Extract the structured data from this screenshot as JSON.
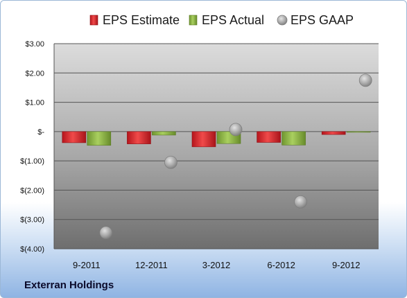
{
  "company": "Exterran Holdings",
  "colors": {
    "estimate": "#d9242b",
    "actual": "#8ab043",
    "gaap": "#a9a9a9"
  },
  "chart_data": {
    "type": "bar",
    "categories": [
      "9-2011",
      "12-2011",
      "3-2012",
      "6-2012",
      "9-2012"
    ],
    "series": [
      {
        "name": "EPS Estimate",
        "kind": "bar",
        "values": [
          -0.38,
          -0.42,
          -0.52,
          -0.37,
          -0.1
        ]
      },
      {
        "name": "EPS Actual",
        "kind": "bar",
        "values": [
          -0.47,
          -0.12,
          -0.41,
          -0.46,
          -0.01
        ]
      },
      {
        "name": "EPS GAAP",
        "kind": "scatter",
        "values": [
          -3.45,
          -1.05,
          0.07,
          -2.4,
          1.75
        ]
      }
    ],
    "ylim": [
      -4,
      3
    ],
    "yticks": [
      3,
      2,
      1,
      0,
      -1,
      -2,
      -3,
      -4
    ],
    "ytick_labels": [
      "$3.00",
      "$2.00",
      "$1.00",
      "$-",
      "$(1.00)",
      "$(2.00)",
      "$(3.00)",
      "$(4.00)"
    ],
    "legend_position": "top",
    "grid": true
  }
}
